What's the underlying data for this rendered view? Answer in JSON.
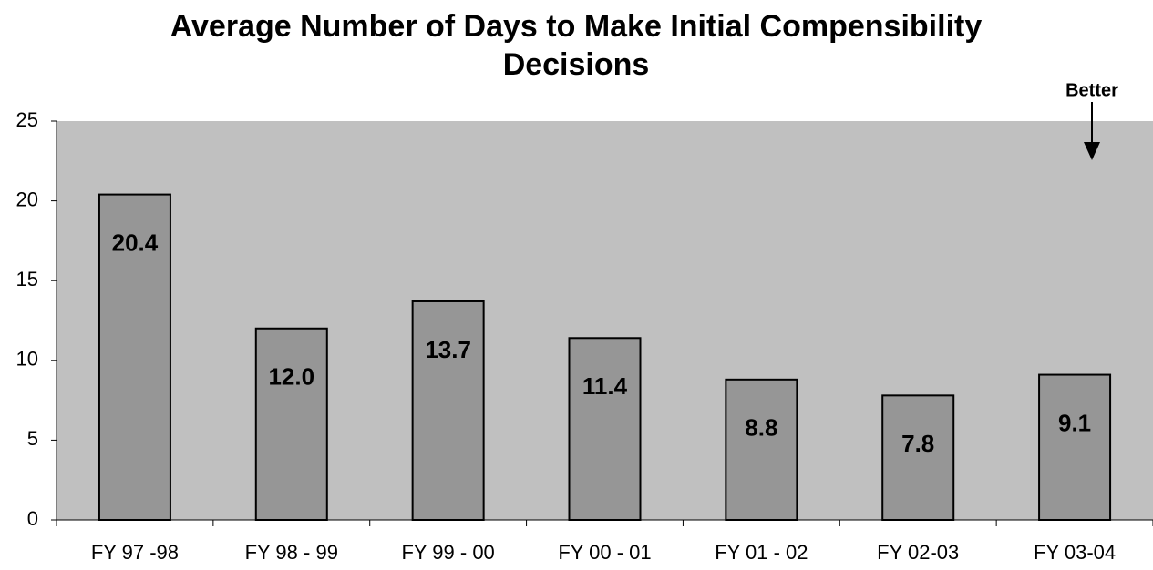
{
  "chart_data": {
    "type": "bar",
    "title": "Average Number of Days to Make Initial Compensibility Decisions",
    "annotation": "Better",
    "categories": [
      "FY 97 -98",
      "FY 98 - 99",
      "FY 99 - 00",
      "FY 00 - 01",
      "FY 01 - 02",
      "FY 02-03",
      "FY 03-04"
    ],
    "values": [
      20.4,
      12,
      13.7,
      11.4,
      8.8,
      7.8,
      9.1
    ],
    "value_labels": [
      "20.4",
      "12.0",
      "13.7",
      "11.4",
      "8.8",
      "7.8",
      "9.1"
    ],
    "color": "#969696",
    "plot_background": "#c0c0c0",
    "ylim": [
      0,
      25
    ],
    "yticks": [
      0,
      5,
      10,
      15,
      20,
      25
    ],
    "grid": false
  }
}
